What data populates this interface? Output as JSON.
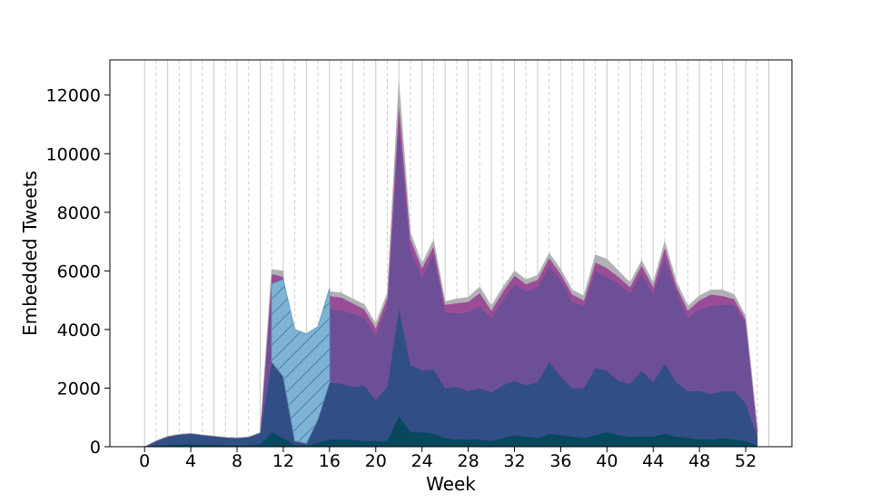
{
  "chart_data": {
    "type": "area",
    "stacked": true,
    "xlabel": "Week",
    "ylabel": "Embedded Tweets",
    "xlim": [
      -3,
      56
    ],
    "ylim": [
      0,
      13200
    ],
    "xticks": [
      0,
      4,
      8,
      12,
      16,
      20,
      24,
      28,
      32,
      36,
      40,
      44,
      48,
      52
    ],
    "yticks": [
      0,
      2000,
      4000,
      6000,
      8000,
      10000,
      12000
    ],
    "grid": {
      "x_major_every": 2,
      "x_minor_dashed_between": true,
      "y": false
    },
    "legend": "none",
    "x": [
      0,
      1,
      2,
      3,
      4,
      5,
      6,
      7,
      8,
      9,
      10,
      11,
      12,
      13,
      14,
      15,
      16,
      17,
      18,
      19,
      20,
      21,
      22,
      23,
      24,
      25,
      26,
      27,
      28,
      29,
      30,
      31,
      32,
      33,
      34,
      35,
      36,
      37,
      38,
      39,
      40,
      41,
      42,
      43,
      44,
      45,
      46,
      47,
      48,
      49,
      50,
      51,
      52,
      53
    ],
    "series": [
      {
        "color": "#07485e",
        "values": [
          0,
          40,
          70,
          80,
          90,
          80,
          70,
          60,
          60,
          60,
          80,
          500,
          300,
          60,
          40,
          150,
          250,
          250,
          250,
          200,
          200,
          200,
          1050,
          500,
          500,
          450,
          300,
          250,
          250,
          250,
          200,
          300,
          400,
          350,
          300,
          450,
          400,
          350,
          300,
          400,
          500,
          400,
          350,
          350,
          350,
          450,
          350,
          300,
          250,
          250,
          300,
          250,
          200,
          50
        ]
      },
      {
        "color": "#324e86",
        "values": [
          0,
          160,
          280,
          340,
          360,
          320,
          290,
          260,
          240,
          270,
          400,
          2400,
          2100,
          140,
          80,
          800,
          1950,
          1900,
          1800,
          1900,
          1400,
          1850,
          3700,
          2300,
          2100,
          2200,
          1700,
          1800,
          1650,
          1750,
          1650,
          1800,
          1850,
          1750,
          1900,
          2450,
          2000,
          1650,
          1700,
          2300,
          2100,
          1850,
          1800,
          2250,
          1850,
          2400,
          1850,
          1600,
          1650,
          1550,
          1600,
          1650,
          1300,
          300
        ]
      },
      {
        "color": "#6c4f96",
        "values": [
          0,
          0,
          0,
          0,
          0,
          0,
          0,
          0,
          0,
          0,
          0,
          2400,
          2800,
          0,
          0,
          0,
          2500,
          2500,
          2500,
          2300,
          2200,
          2750,
          6200,
          3900,
          3200,
          3900,
          2600,
          2500,
          2700,
          2800,
          2550,
          2900,
          3300,
          3200,
          3250,
          3250,
          3300,
          2950,
          2800,
          3300,
          3200,
          3300,
          3100,
          3300,
          3000,
          3600,
          3100,
          2500,
          2800,
          3000,
          2950,
          2950,
          2700,
          250
        ]
      },
      {
        "color": "#9a4d96",
        "values": [
          0,
          0,
          0,
          0,
          0,
          0,
          0,
          0,
          0,
          0,
          0,
          600,
          600,
          0,
          0,
          0,
          450,
          450,
          350,
          300,
          250,
          300,
          800,
          400,
          300,
          300,
          250,
          350,
          350,
          450,
          250,
          300,
          300,
          250,
          250,
          300,
          200,
          250,
          200,
          300,
          300,
          250,
          200,
          300,
          250,
          350,
          200,
          250,
          300,
          400,
          300,
          200,
          150,
          50
        ]
      },
      {
        "color": "#b0b0b6",
        "values": [
          0,
          0,
          0,
          0,
          0,
          0,
          0,
          0,
          0,
          0,
          0,
          150,
          200,
          0,
          0,
          0,
          150,
          150,
          150,
          150,
          150,
          150,
          700,
          200,
          150,
          200,
          100,
          150,
          150,
          200,
          150,
          150,
          150,
          150,
          150,
          150,
          150,
          150,
          150,
          250,
          300,
          200,
          150,
          150,
          150,
          200,
          150,
          150,
          150,
          150,
          200,
          150,
          100,
          50
        ]
      }
    ],
    "overlay": {
      "type": "hatched-area",
      "color": "#7fb3d5",
      "x": [
        11,
        12,
        13,
        14,
        15,
        16
      ],
      "bottom": [
        2900,
        2400,
        200,
        120,
        950,
        2200
      ],
      "top": [
        5550,
        5700,
        4000,
        3850,
        4100,
        5400
      ]
    }
  }
}
